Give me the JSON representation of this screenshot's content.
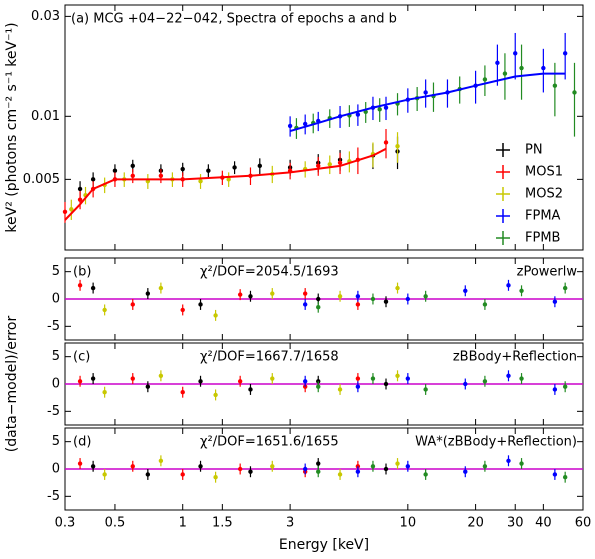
{
  "chart_data": [
    {
      "type": "scatter",
      "title": "(a) MCG +04−22−042, Spectra of epochs a and b",
      "ylabel": "keV² (photons cm⁻² s⁻¹ keV⁻¹)",
      "yscale": "log",
      "ylim": [
        0.0023,
        0.034
      ],
      "yticks": [
        0.005,
        0.01,
        0.03
      ],
      "legend": "lower right",
      "series": [
        {
          "name": "PN",
          "color": "#000000",
          "x": [
            0.35,
            0.4,
            0.5,
            0.6,
            0.8,
            1,
            1.3,
            1.7,
            2.2,
            3,
            4,
            5,
            7,
            9
          ],
          "values": [
            0.0045,
            0.005,
            0.0055,
            0.0058,
            0.0055,
            0.0056,
            0.0055,
            0.0057,
            0.0058,
            0.0057,
            0.006,
            0.0062,
            0.0065,
            0.0068
          ],
          "errors": [
            0.0004,
            0.0004,
            0.0004,
            0.0004,
            0.0004,
            0.0004,
            0.0004,
            0.0004,
            0.0005,
            0.0005,
            0.0006,
            0.0007,
            0.0009,
            0.0012
          ]
        },
        {
          "name": "MOS1",
          "color": "#ff0000",
          "x": [
            0.3,
            0.35,
            0.4,
            0.5,
            0.6,
            0.8,
            1,
            1.5,
            2,
            3,
            4,
            5,
            6,
            8
          ],
          "values": [
            0.0035,
            0.004,
            0.0045,
            0.005,
            0.0052,
            0.0052,
            0.005,
            0.0051,
            0.0052,
            0.0055,
            0.0058,
            0.006,
            0.0062,
            0.0075
          ],
          "errors": [
            0.0004,
            0.0004,
            0.0004,
            0.0004,
            0.0004,
            0.0004,
            0.0004,
            0.0004,
            0.0005,
            0.0005,
            0.0006,
            0.0007,
            0.0009,
            0.0012
          ]
        },
        {
          "name": "MOS2",
          "color": "#c8c800",
          "x": [
            0.32,
            0.37,
            0.45,
            0.55,
            0.7,
            0.9,
            1.2,
            1.6,
            2.5,
            3.5,
            4.5,
            5.5,
            7,
            9
          ],
          "values": [
            0.0036,
            0.0042,
            0.0047,
            0.005,
            0.0049,
            0.005,
            0.0049,
            0.005,
            0.0053,
            0.0056,
            0.0059,
            0.0061,
            0.0066,
            0.0072
          ],
          "errors": [
            0.0004,
            0.0004,
            0.0004,
            0.0004,
            0.0004,
            0.0004,
            0.0004,
            0.0004,
            0.0005,
            0.0005,
            0.0006,
            0.0007,
            0.0009,
            0.0012
          ]
        },
        {
          "name": "FPMA",
          "color": "#0000ff",
          "x": [
            3,
            3.5,
            4,
            5,
            6,
            7,
            8,
            10,
            12,
            15,
            20,
            25,
            30,
            40,
            50
          ],
          "values": [
            0.009,
            0.0092,
            0.0095,
            0.01,
            0.0102,
            0.011,
            0.011,
            0.012,
            0.013,
            0.013,
            0.014,
            0.018,
            0.02,
            0.017,
            0.02
          ],
          "errors": [
            0.001,
            0.001,
            0.001,
            0.0012,
            0.0012,
            0.0014,
            0.0014,
            0.0016,
            0.002,
            0.002,
            0.0025,
            0.004,
            0.005,
            0.004,
            0.005
          ]
        },
        {
          "name": "FPMB",
          "color": "#228b22",
          "x": [
            3.2,
            3.8,
            4.5,
            5.5,
            6.5,
            7.5,
            9,
            11,
            13,
            17,
            22,
            27,
            32,
            45,
            55
          ],
          "values": [
            0.0088,
            0.0093,
            0.0098,
            0.0101,
            0.0105,
            0.0108,
            0.0115,
            0.0122,
            0.0125,
            0.0135,
            0.015,
            0.016,
            0.017,
            0.014,
            0.013
          ],
          "errors": [
            0.001,
            0.001,
            0.001,
            0.0012,
            0.0012,
            0.0014,
            0.0014,
            0.0016,
            0.002,
            0.002,
            0.0025,
            0.004,
            0.005,
            0.004,
            0.005
          ]
        }
      ],
      "models": [
        {
          "color": "#ff0000",
          "x": [
            0.3,
            0.35,
            0.4,
            0.5,
            0.7,
            1,
            2,
            3,
            5,
            7,
            8
          ],
          "values": [
            0.0032,
            0.0038,
            0.0045,
            0.005,
            0.005,
            0.005,
            0.0052,
            0.0054,
            0.0058,
            0.0065,
            0.007
          ]
        },
        {
          "color": "#0000ff",
          "x": [
            3,
            4,
            5,
            7,
            10,
            15,
            20,
            30,
            40,
            50
          ],
          "values": [
            0.0085,
            0.0093,
            0.01,
            0.011,
            0.012,
            0.013,
            0.014,
            0.0155,
            0.016,
            0.016
          ]
        }
      ]
    },
    {
      "type": "scatter",
      "panel_label": "(b)",
      "statistic": "χ²/DOF=2054.5/1693",
      "model": "zPowerlw",
      "ylim": [
        -7.5,
        7.5
      ],
      "yticks": [
        -5,
        0,
        5
      ],
      "series": [
        {
          "color": "#000000",
          "x": [
            0.4,
            0.7,
            1.2,
            2,
            4,
            8
          ],
          "values": [
            2,
            1,
            -1,
            0.5,
            0,
            -0.5
          ],
          "errors": [
            1,
            1,
            1,
            1,
            1,
            1
          ]
        },
        {
          "color": "#ff0000",
          "x": [
            0.35,
            0.6,
            1,
            1.8,
            3.5,
            6
          ],
          "values": [
            2.5,
            -1,
            -2,
            0.8,
            1,
            -1
          ],
          "errors": [
            1,
            1,
            1,
            1,
            1,
            1
          ]
        },
        {
          "color": "#c8c800",
          "x": [
            0.45,
            0.8,
            1.4,
            2.5,
            5,
            9
          ],
          "values": [
            -2,
            2,
            -3,
            1,
            0.5,
            2
          ],
          "errors": [
            1,
            1,
            1,
            1,
            1,
            1
          ]
        },
        {
          "color": "#0000ff",
          "x": [
            3.5,
            6,
            10,
            18,
            28,
            45
          ],
          "values": [
            -1,
            0.5,
            0,
            1.5,
            2.5,
            -0.5
          ],
          "errors": [
            1,
            1,
            1,
            1,
            1,
            1
          ]
        },
        {
          "color": "#228b22",
          "x": [
            4,
            7,
            12,
            22,
            32,
            50
          ],
          "values": [
            -1.5,
            0,
            0.5,
            -1,
            1.5,
            2
          ],
          "errors": [
            1,
            1,
            1,
            1,
            1,
            1
          ]
        }
      ]
    },
    {
      "type": "scatter",
      "panel_label": "(c)",
      "statistic": "χ²/DOF=1667.7/1658",
      "model": "zBBody+Reflection",
      "ylabel": "(data−model)/error",
      "ylim": [
        -7.5,
        7.5
      ],
      "yticks": [
        -5,
        0,
        5
      ],
      "series": [
        {
          "color": "#000000",
          "x": [
            0.4,
            0.7,
            1.2,
            2,
            4,
            8
          ],
          "values": [
            1,
            -0.5,
            0.5,
            -1,
            0.5,
            0
          ],
          "errors": [
            1,
            1,
            1,
            1,
            1,
            1
          ]
        },
        {
          "color": "#ff0000",
          "x": [
            0.35,
            0.6,
            1,
            1.8,
            3.5,
            6
          ],
          "values": [
            0.5,
            1,
            -1.5,
            0.5,
            -0.5,
            1
          ],
          "errors": [
            1,
            1,
            1,
            1,
            1,
            1
          ]
        },
        {
          "color": "#c8c800",
          "x": [
            0.45,
            0.8,
            1.4,
            2.5,
            5,
            9
          ],
          "values": [
            -1.5,
            1.5,
            -2,
            1,
            -1,
            1.5
          ],
          "errors": [
            1,
            1,
            1,
            1,
            1,
            1
          ]
        },
        {
          "color": "#0000ff",
          "x": [
            3.5,
            6,
            10,
            18,
            28,
            45
          ],
          "values": [
            0.5,
            -0.5,
            1,
            0,
            1.5,
            -1
          ],
          "errors": [
            1,
            1,
            1,
            1,
            1,
            1
          ]
        },
        {
          "color": "#228b22",
          "x": [
            4,
            7,
            12,
            22,
            32,
            50
          ],
          "values": [
            -0.5,
            1,
            -1,
            0.5,
            1,
            -0.5
          ],
          "errors": [
            1,
            1,
            1,
            1,
            1,
            1
          ]
        }
      ]
    },
    {
      "type": "scatter",
      "panel_label": "(d)",
      "statistic": "χ²/DOF=1651.6/1655",
      "model": "WA*(zBBody+Reflection)",
      "xlabel": "Energy [keV]",
      "xscale": "log",
      "xlim": [
        0.3,
        60
      ],
      "xticks": [
        0.3,
        0.5,
        1,
        1.5,
        3,
        10,
        20,
        30,
        40,
        60
      ],
      "ylim": [
        -7.5,
        7.5
      ],
      "yticks": [
        -5,
        0,
        5
      ],
      "series": [
        {
          "color": "#000000",
          "x": [
            0.4,
            0.7,
            1.2,
            2,
            4,
            8
          ],
          "values": [
            0.5,
            -1,
            0.5,
            -0.5,
            1,
            0
          ],
          "errors": [
            1,
            1,
            1,
            1,
            1,
            1
          ]
        },
        {
          "color": "#ff0000",
          "x": [
            0.35,
            0.6,
            1,
            1.8,
            3.5,
            6
          ],
          "values": [
            1,
            0.5,
            -1,
            0,
            -0.5,
            0.5
          ],
          "errors": [
            1,
            1,
            1,
            1,
            1,
            1
          ]
        },
        {
          "color": "#c8c800",
          "x": [
            0.45,
            0.8,
            1.4,
            2.5,
            5,
            9
          ],
          "values": [
            -1,
            1.5,
            -1.5,
            0.5,
            -1,
            1
          ],
          "errors": [
            1,
            1,
            1,
            1,
            1,
            1
          ]
        },
        {
          "color": "#0000ff",
          "x": [
            3.5,
            6,
            10,
            18,
            28,
            45
          ],
          "values": [
            0,
            -0.5,
            0.5,
            -0.5,
            1.5,
            -1
          ],
          "errors": [
            1,
            1,
            1,
            1,
            1,
            1
          ]
        },
        {
          "color": "#228b22",
          "x": [
            4,
            7,
            12,
            22,
            32,
            50
          ],
          "values": [
            -0.5,
            0.5,
            -1,
            0.5,
            1,
            -1.5
          ],
          "errors": [
            1,
            1,
            1,
            1,
            1,
            1
          ]
        }
      ]
    }
  ]
}
